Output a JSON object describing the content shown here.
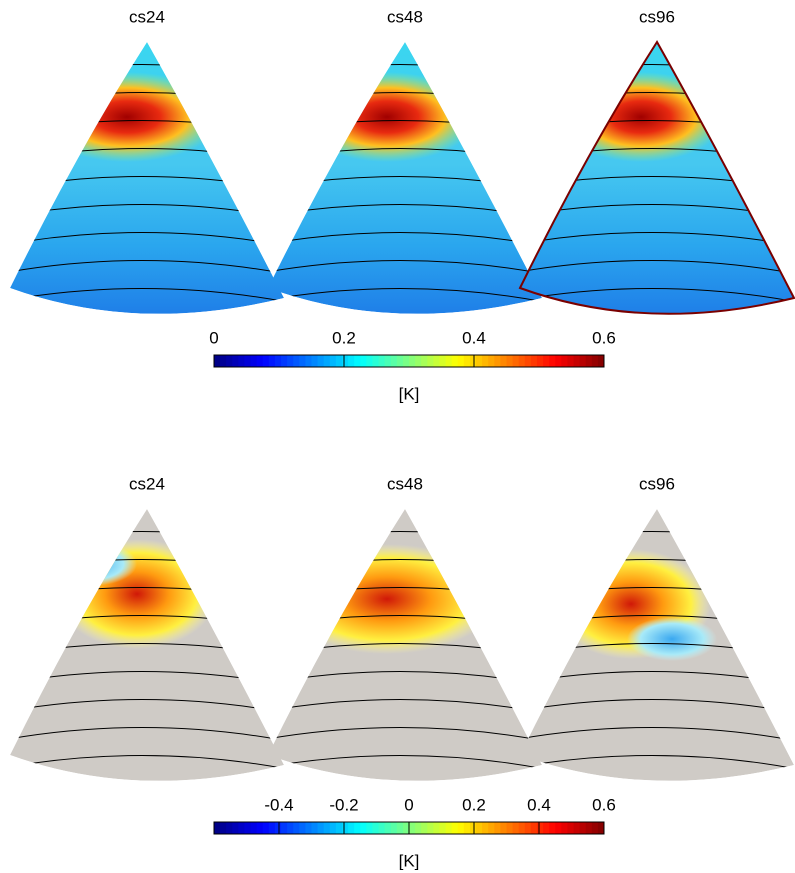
{
  "chart_data": [
    {
      "type": "map",
      "panels": [
        "cs24",
        "cs48",
        "cs96"
      ],
      "colormap": "jet",
      "clim": [
        0,
        0.6
      ],
      "cticks": [
        0,
        0.2,
        0.4,
        0.6
      ],
      "colorbar_label": "[K]"
    },
    {
      "type": "map",
      "panels": [
        "cs24",
        "cs48",
        "cs96"
      ],
      "colormap": "jet",
      "clim": [
        -0.6,
        0.6
      ],
      "cticks": [
        -0.4,
        -0.2,
        0,
        0.2,
        0.4,
        0.6
      ],
      "colorbar_label": "[K]"
    }
  ]
}
